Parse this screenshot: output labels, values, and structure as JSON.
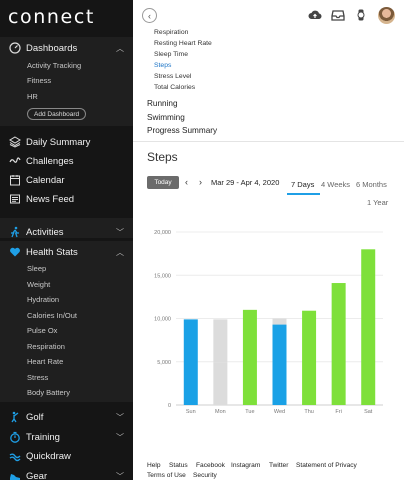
{
  "app": {
    "logo_text": "connect"
  },
  "sidebar": {
    "dashboards": {
      "label": "Dashboards",
      "items": [
        "Activity Tracking",
        "Fitness",
        "HR"
      ],
      "add_label": "Add Dashboard"
    },
    "nav": [
      {
        "label": "Daily Summary",
        "icon": "layers-icon"
      },
      {
        "label": "Challenges",
        "icon": "challenges-icon"
      },
      {
        "label": "Calendar",
        "icon": "calendar-icon"
      },
      {
        "label": "News Feed",
        "icon": "newsfeed-icon"
      }
    ],
    "activities": {
      "label": "Activities"
    },
    "health_stats": {
      "label": "Health Stats",
      "items": [
        "Sleep",
        "Weight",
        "Hydration",
        "Calories In/Out",
        "Pulse Ox",
        "Respiration",
        "Heart Rate",
        "Stress",
        "Body Battery"
      ]
    },
    "golf": {
      "label": "Golf"
    },
    "training": {
      "label": "Training"
    },
    "quickdraw": {
      "label": "Quickdraw"
    },
    "gear": {
      "label": "Gear"
    },
    "accent_color": "#1f9fe6"
  },
  "topbar": {
    "back_icon": "chevron-left-icon",
    "icons": [
      "upload-icon",
      "inbox-icon",
      "watch-icon"
    ]
  },
  "reports": {
    "sub_items": [
      "Respiration",
      "Resting Heart Rate",
      "Sleep Time",
      "Steps",
      "Stress Level",
      "Total Calories"
    ],
    "active_item": "Steps",
    "categories": [
      "Running",
      "Swimming",
      "Progress Summary"
    ]
  },
  "steps": {
    "title": "Steps",
    "today_label": "Today",
    "prev_icon": "chevron-left-icon",
    "next_icon": "chevron-right-icon",
    "date_range": "Mar 29 - Apr 4, 2020",
    "tabs": [
      "7 Days",
      "4 Weeks",
      "6 Months",
      "1 Year"
    ],
    "active_tab": "7 Days"
  },
  "chart_data": {
    "type": "bar",
    "categories": [
      "Sun",
      "Mon",
      "Tue",
      "Wed",
      "Thu",
      "Fri",
      "Sat"
    ],
    "series": [
      {
        "values": [
          9900,
          4900,
          11000,
          9300,
          10900,
          14100,
          18000
        ]
      },
      {
        "values": [
          0,
          5000,
          0,
          700,
          0,
          0,
          0
        ]
      }
    ],
    "bar_colors": [
      "#1aa1e6",
      "#dcdcdc",
      "#7ee03a",
      "#1aa1e6",
      "#7ee03a",
      "#7ee03a",
      "#7ee03a"
    ],
    "goal_color": "#dcdcdc",
    "ylim": [
      0,
      20000
    ],
    "yticks": [
      "0",
      "5,000",
      "10,000",
      "15,000",
      "20,000"
    ],
    "grid": true,
    "stacked": true
  },
  "footer": {
    "links": [
      "Help",
      "Status",
      "Facebook",
      "Instagram",
      "Twitter",
      "Statement of Privacy",
      "Terms of Use",
      "Security"
    ]
  }
}
